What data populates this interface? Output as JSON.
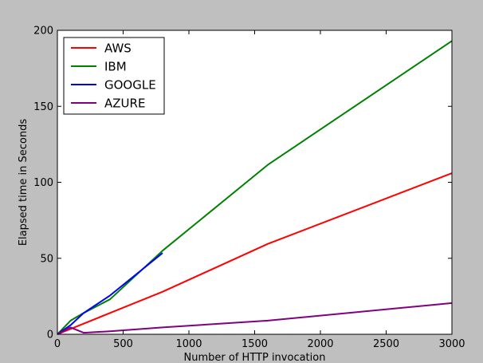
{
  "chart_data": {
    "type": "line",
    "title": "",
    "xlabel": "Number of HTTP invocation",
    "ylabel": "Elapsed time in Seconds",
    "xlim": [
      0,
      3000
    ],
    "ylim": [
      0,
      200
    ],
    "xticks": [
      0,
      500,
      1000,
      1500,
      2000,
      2500,
      3000
    ],
    "yticks": [
      0,
      50,
      100,
      150,
      200
    ],
    "grid": false,
    "legend_position": "top-left",
    "series": [
      {
        "name": "AWS",
        "color": "#ff0000",
        "x": [
          0,
          100,
          200,
          400,
          800,
          1600,
          3000
        ],
        "y": [
          0,
          3.5,
          7,
          14,
          28,
          59.5,
          106
        ]
      },
      {
        "name": "IBM",
        "color": "#008000",
        "x": [
          0,
          100,
          200,
          400,
          800,
          1600,
          3000
        ],
        "y": [
          0,
          9,
          14,
          23,
          55,
          111.5,
          193
        ]
      },
      {
        "name": "GOOGLE",
        "color": "#0000ff",
        "x": [
          0,
          100,
          200,
          400,
          800
        ],
        "y": [
          0,
          6,
          14,
          25.5,
          53.5
        ]
      },
      {
        "name": "AZURE",
        "color": "#800080",
        "x": [
          0,
          100,
          200,
          400,
          800,
          1600,
          3000
        ],
        "y": [
          0,
          4.5,
          1,
          2,
          4.5,
          9,
          20.5
        ]
      }
    ]
  }
}
